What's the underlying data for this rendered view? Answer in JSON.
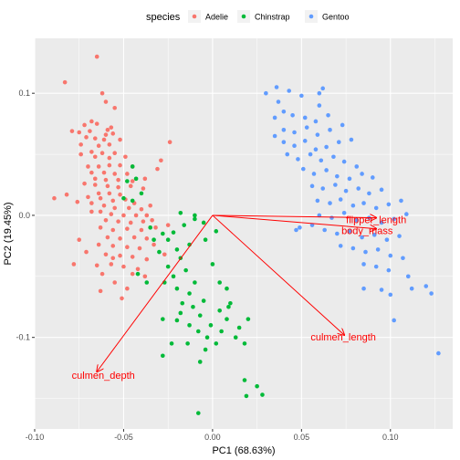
{
  "chart_data": {
    "type": "scatter",
    "title": "",
    "xlabel": "PC1 (68.63%)",
    "ylabel": "PC2 (19.45%)",
    "xlim": [
      -0.1,
      0.135
    ],
    "ylim": [
      -0.175,
      0.145
    ],
    "x_ticks": [
      -0.1,
      -0.05,
      0.0,
      0.05,
      0.1
    ],
    "x_tick_labels": [
      "-0.10",
      "-0.05",
      "0.00",
      "0.05",
      "0.10"
    ],
    "y_ticks": [
      -0.1,
      0.0,
      0.1
    ],
    "y_tick_labels": [
      "-0.1",
      "0.0",
      "0.1"
    ],
    "grid": true,
    "legend": {
      "title": "species",
      "position": "top",
      "entries": [
        {
          "label": "Adelie",
          "color": "#F8766D"
        },
        {
          "label": "Chinstrap",
          "color": "#00BA38"
        },
        {
          "label": "Gentoo",
          "color": "#619CFF"
        }
      ]
    },
    "series": [
      {
        "name": "Adelie",
        "color": "#F8766D",
        "points": [
          [
            -0.065,
            0.13
          ],
          [
            -0.083,
            0.109
          ],
          [
            -0.062,
            0.1
          ],
          [
            -0.06,
            0.093
          ],
          [
            -0.055,
            0.088
          ],
          [
            -0.068,
            0.077
          ],
          [
            -0.059,
            0.07
          ],
          [
            -0.072,
            0.074
          ],
          [
            -0.065,
            0.075
          ],
          [
            -0.057,
            0.072
          ],
          [
            -0.075,
            0.068
          ],
          [
            -0.069,
            0.069
          ],
          [
            -0.06,
            0.066
          ],
          [
            -0.056,
            0.067
          ],
          [
            -0.071,
            0.064
          ],
          [
            -0.079,
            0.069
          ],
          [
            -0.066,
            0.063
          ],
          [
            -0.061,
            0.062
          ],
          [
            -0.052,
            0.062
          ],
          [
            -0.074,
            0.058
          ],
          [
            -0.064,
            0.057
          ],
          [
            -0.058,
            0.058
          ],
          [
            -0.068,
            0.052
          ],
          [
            -0.062,
            0.051
          ],
          [
            -0.055,
            0.051
          ],
          [
            -0.074,
            0.05
          ],
          [
            -0.066,
            0.048
          ],
          [
            -0.058,
            0.047
          ],
          [
            -0.049,
            0.048
          ],
          [
            -0.024,
            0.06
          ],
          [
            -0.029,
            0.045
          ],
          [
            -0.07,
            0.04
          ],
          [
            -0.064,
            0.04
          ],
          [
            -0.058,
            0.041
          ],
          [
            -0.052,
            0.041
          ],
          [
            -0.045,
            0.04
          ],
          [
            -0.068,
            0.035
          ],
          [
            -0.061,
            0.035
          ],
          [
            -0.055,
            0.034
          ],
          [
            -0.048,
            0.034
          ],
          [
            -0.031,
            0.038
          ],
          [
            -0.038,
            0.03
          ],
          [
            -0.066,
            0.03
          ],
          [
            -0.06,
            0.029
          ],
          [
            -0.053,
            0.029
          ],
          [
            -0.045,
            0.028
          ],
          [
            -0.072,
            0.026
          ],
          [
            -0.066,
            0.025
          ],
          [
            -0.059,
            0.024
          ],
          [
            -0.053,
            0.023
          ],
          [
            -0.046,
            0.024
          ],
          [
            -0.039,
            0.022
          ],
          [
            -0.064,
            0.018
          ],
          [
            -0.058,
            0.018
          ],
          [
            -0.052,
            0.017
          ],
          [
            -0.07,
            0.015
          ],
          [
            -0.063,
            0.014
          ],
          [
            -0.056,
            0.012
          ],
          [
            -0.049,
            0.013
          ],
          [
            -0.044,
            0.01
          ],
          [
            -0.089,
            0.014
          ],
          [
            -0.082,
            0.017
          ],
          [
            -0.076,
            0.011
          ],
          [
            -0.068,
            0.01
          ],
          [
            -0.061,
            0.008
          ],
          [
            -0.055,
            0.006
          ],
          [
            -0.047,
            0.006
          ],
          [
            -0.04,
            0.005
          ],
          [
            -0.035,
            0.008
          ],
          [
            -0.063,
            0.003
          ],
          [
            -0.057,
            0.001
          ],
          [
            -0.05,
            0.0
          ],
          [
            -0.043,
            0.0
          ],
          [
            -0.037,
            0.0
          ],
          [
            -0.068,
            0.003
          ],
          [
            -0.06,
            -0.004
          ],
          [
            -0.053,
            -0.005
          ],
          [
            -0.046,
            -0.006
          ],
          [
            -0.039,
            -0.005
          ],
          [
            -0.034,
            -0.004
          ],
          [
            -0.063,
            -0.01
          ],
          [
            -0.056,
            -0.012
          ],
          [
            -0.048,
            -0.011
          ],
          [
            -0.04,
            -0.012
          ],
          [
            -0.032,
            -0.01
          ],
          [
            -0.025,
            -0.008
          ],
          [
            -0.059,
            -0.018
          ],
          [
            -0.052,
            -0.019
          ],
          [
            -0.044,
            -0.018
          ],
          [
            -0.037,
            -0.019
          ],
          [
            -0.064,
            -0.024
          ],
          [
            -0.056,
            -0.025
          ],
          [
            -0.048,
            -0.026
          ],
          [
            -0.041,
            -0.027
          ],
          [
            -0.033,
            -0.024
          ],
          [
            -0.06,
            -0.032
          ],
          [
            -0.052,
            -0.033
          ],
          [
            -0.045,
            -0.034
          ],
          [
            -0.037,
            -0.036
          ],
          [
            -0.027,
            -0.032
          ],
          [
            -0.065,
            -0.041
          ],
          [
            -0.057,
            -0.04
          ],
          [
            -0.05,
            -0.042
          ],
          [
            -0.042,
            -0.044
          ],
          [
            -0.038,
            -0.05
          ],
          [
            -0.062,
            -0.048
          ],
          [
            -0.055,
            -0.055
          ],
          [
            -0.048,
            -0.06
          ],
          [
            -0.063,
            -0.062
          ],
          [
            -0.075,
            -0.02
          ],
          [
            -0.051,
            -0.068
          ],
          [
            -0.056,
            -0.035
          ],
          [
            -0.045,
            -0.048
          ],
          [
            -0.071,
            -0.03
          ],
          [
            -0.078,
            -0.04
          ]
        ]
      },
      {
        "name": "Chinstrap",
        "color": "#00BA38",
        "points": [
          [
            -0.045,
            0.04
          ],
          [
            -0.048,
            0.028
          ],
          [
            -0.043,
            0.03
          ],
          [
            -0.05,
            0.014
          ],
          [
            -0.045,
            0.012
          ],
          [
            -0.04,
            0.018
          ],
          [
            -0.018,
            0.002
          ],
          [
            -0.01,
            -0.003
          ],
          [
            -0.005,
            -0.006
          ],
          [
            0.002,
            -0.013
          ],
          [
            -0.016,
            -0.008
          ],
          [
            -0.022,
            -0.014
          ],
          [
            -0.025,
            -0.02
          ],
          [
            -0.02,
            -0.028
          ],
          [
            -0.013,
            -0.024
          ],
          [
            -0.018,
            -0.035
          ],
          [
            -0.025,
            -0.042
          ],
          [
            -0.022,
            -0.05
          ],
          [
            -0.015,
            -0.045
          ],
          [
            -0.01,
            -0.055
          ],
          [
            -0.027,
            -0.055
          ],
          [
            -0.02,
            -0.06
          ],
          [
            -0.013,
            -0.064
          ],
          [
            -0.005,
            -0.07
          ],
          [
            -0.011,
            -0.075
          ],
          [
            -0.017,
            -0.072
          ],
          [
            -0.02,
            -0.086
          ],
          [
            -0.013,
            -0.09
          ],
          [
            -0.007,
            -0.082
          ],
          [
            -0.001,
            -0.09
          ],
          [
            0.004,
            -0.078
          ],
          [
            0.008,
            -0.085
          ],
          [
            0.013,
            -0.1
          ],
          [
            0.002,
            -0.105
          ],
          [
            -0.003,
            -0.1
          ],
          [
            -0.008,
            -0.095
          ],
          [
            -0.014,
            -0.105
          ],
          [
            -0.028,
            -0.085
          ],
          [
            -0.037,
            -0.055
          ],
          [
            -0.042,
            -0.048
          ],
          [
            -0.03,
            -0.03
          ],
          [
            -0.028,
            -0.015
          ],
          [
            -0.035,
            -0.01
          ],
          [
            -0.033,
            -0.02
          ],
          [
            -0.01,
            0.0
          ],
          [
            -0.004,
            -0.02
          ],
          [
            0.0,
            -0.04
          ],
          [
            0.008,
            -0.06
          ],
          [
            0.01,
            -0.072
          ],
          [
            0.015,
            -0.092
          ],
          [
            0.018,
            -0.105
          ],
          [
            0.02,
            -0.085
          ],
          [
            0.005,
            -0.095
          ],
          [
            -0.004,
            -0.11
          ],
          [
            -0.023,
            -0.105
          ],
          [
            -0.028,
            -0.115
          ],
          [
            0.025,
            -0.14
          ],
          [
            0.018,
            -0.135
          ],
          [
            0.019,
            -0.148
          ],
          [
            0.028,
            -0.147
          ],
          [
            -0.008,
            -0.162
          ],
          [
            -0.007,
            -0.12
          ],
          [
            0.004,
            -0.055
          ],
          [
            0.009,
            -0.075
          ],
          [
            -0.018,
            -0.08
          ]
        ]
      },
      {
        "name": "Gentoo",
        "color": "#619CFF",
        "points": [
          [
            0.03,
            0.1
          ],
          [
            0.036,
            0.105
          ],
          [
            0.043,
            0.102
          ],
          [
            0.05,
            0.098
          ],
          [
            0.06,
            0.1
          ],
          [
            0.062,
            0.104
          ],
          [
            0.06,
            0.09
          ],
          [
            0.037,
            0.093
          ],
          [
            0.04,
            0.085
          ],
          [
            0.045,
            0.082
          ],
          [
            0.052,
            0.08
          ],
          [
            0.058,
            0.077
          ],
          [
            0.065,
            0.082
          ],
          [
            0.04,
            0.07
          ],
          [
            0.046,
            0.068
          ],
          [
            0.053,
            0.072
          ],
          [
            0.059,
            0.066
          ],
          [
            0.066,
            0.07
          ],
          [
            0.073,
            0.074
          ],
          [
            0.035,
            0.065
          ],
          [
            0.04,
            0.06
          ],
          [
            0.046,
            0.057
          ],
          [
            0.052,
            0.061
          ],
          [
            0.058,
            0.054
          ],
          [
            0.064,
            0.056
          ],
          [
            0.071,
            0.06
          ],
          [
            0.078,
            0.062
          ],
          [
            0.042,
            0.05
          ],
          [
            0.048,
            0.046
          ],
          [
            0.055,
            0.05
          ],
          [
            0.061,
            0.045
          ],
          [
            0.068,
            0.048
          ],
          [
            0.074,
            0.044
          ],
          [
            0.081,
            0.04
          ],
          [
            0.051,
            0.038
          ],
          [
            0.057,
            0.034
          ],
          [
            0.064,
            0.037
          ],
          [
            0.07,
            0.032
          ],
          [
            0.077,
            0.03
          ],
          [
            0.084,
            0.034
          ],
          [
            0.09,
            0.031
          ],
          [
            0.056,
            0.024
          ],
          [
            0.062,
            0.022
          ],
          [
            0.069,
            0.025
          ],
          [
            0.075,
            0.02
          ],
          [
            0.082,
            0.022
          ],
          [
            0.088,
            0.018
          ],
          [
            0.095,
            0.021
          ],
          [
            0.059,
            0.012
          ],
          [
            0.066,
            0.01
          ],
          [
            0.072,
            0.013
          ],
          [
            0.079,
            0.008
          ],
          [
            0.085,
            0.01
          ],
          [
            0.092,
            0.006
          ],
          [
            0.099,
            0.009
          ],
          [
            0.106,
            0.012
          ],
          [
            0.06,
            0.0
          ],
          [
            0.067,
            -0.002
          ],
          [
            0.074,
            0.002
          ],
          [
            0.081,
            -0.004
          ],
          [
            0.088,
            -0.002
          ],
          [
            0.095,
            -0.006
          ],
          [
            0.102,
            -0.003
          ],
          [
            0.109,
            0.001
          ],
          [
            0.049,
            -0.01
          ],
          [
            0.056,
            -0.008
          ],
          [
            0.063,
            -0.012
          ],
          [
            0.07,
            -0.015
          ],
          [
            0.077,
            -0.013
          ],
          [
            0.084,
            -0.018
          ],
          [
            0.091,
            -0.016
          ],
          [
            0.098,
            -0.02
          ],
          [
            0.105,
            -0.017
          ],
          [
            0.072,
            -0.025
          ],
          [
            0.079,
            -0.027
          ],
          [
            0.086,
            -0.03
          ],
          [
            0.093,
            -0.028
          ],
          [
            0.1,
            -0.033
          ],
          [
            0.107,
            -0.035
          ],
          [
            0.085,
            -0.04
          ],
          [
            0.092,
            -0.042
          ],
          [
            0.099,
            -0.045
          ],
          [
            0.11,
            -0.05
          ],
          [
            0.085,
            -0.06
          ],
          [
            0.095,
            -0.061
          ],
          [
            0.1,
            -0.065
          ],
          [
            0.112,
            -0.06
          ],
          [
            0.12,
            -0.058
          ],
          [
            0.123,
            -0.064
          ],
          [
            0.102,
            -0.086
          ],
          [
            0.127,
            -0.113
          ],
          [
            0.047,
            -0.012
          ],
          [
            0.035,
            0.08
          ]
        ]
      }
    ],
    "loadings": [
      {
        "label": "flipper_length",
        "x": 0.092,
        "y": -0.002
      },
      {
        "label": "body_mass",
        "x": 0.092,
        "y": -0.011
      },
      {
        "label": "culmen_length",
        "x": 0.074,
        "y": -0.098
      },
      {
        "label": "culmen_depth",
        "x": -0.065,
        "y": -0.128
      }
    ],
    "loading_color": "#FF0000"
  }
}
